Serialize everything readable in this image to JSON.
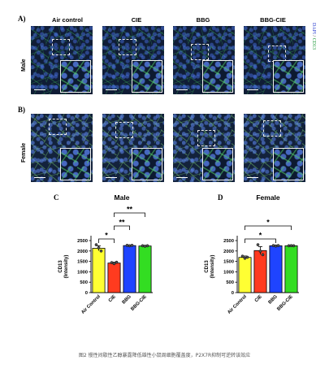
{
  "figure": {
    "panel_letters": [
      "A)",
      "B)",
      "C",
      "D"
    ],
    "column_headers": [
      "Air control",
      "CIE",
      "BBG",
      "BBG-CIE"
    ],
    "row_labels": [
      "Male",
      "Female"
    ],
    "stain_label": {
      "part1": "DAPI",
      "sep": " / ",
      "part2": "CD13"
    },
    "colors": {
      "dapi": "#2b3ecf",
      "cd13": "#1f9a3a"
    }
  },
  "chart_data": [
    {
      "type": "bar",
      "title": "Male",
      "ylabel": "CD13\n(Intensity)",
      "ylim": [
        0,
        2500
      ],
      "yticks": [
        0,
        500,
        1000,
        1500,
        2000,
        2500
      ],
      "categories": [
        "Air Control",
        "CIE",
        "BBG",
        "BBG-CIE"
      ],
      "values": [
        2130,
        1420,
        2260,
        2240
      ],
      "errors": [
        120,
        40,
        30,
        25
      ],
      "colors": [
        "#ffff33",
        "#ff3b1f",
        "#1f44ff",
        "#33dd22"
      ],
      "points": [
        [
          2300,
          2150,
          2000
        ],
        [
          1440,
          1390,
          1460
        ],
        [
          2270,
          2250,
          2270
        ],
        [
          2250,
          2230,
          2250
        ]
      ],
      "significance": [
        {
          "from": 0,
          "to": 1,
          "label": "*",
          "level": 1
        },
        {
          "from": 1,
          "to": 2,
          "label": "**",
          "level": 2
        },
        {
          "from": 1,
          "to": 3,
          "label": "**",
          "level": 3
        }
      ]
    },
    {
      "type": "bar",
      "title": "Female",
      "ylabel": "CD13\n(Intensity)",
      "ylim": [
        0,
        2500
      ],
      "yticks": [
        0,
        500,
        1000,
        1500,
        2000,
        2500
      ],
      "categories": [
        "Air Control",
        "CIE",
        "BBG",
        "BBG-CIE"
      ],
      "values": [
        1690,
        2020,
        2250,
        2250
      ],
      "errors": [
        70,
        190,
        30,
        15
      ],
      "colors": [
        "#ffff33",
        "#ff3b1f",
        "#1f44ff",
        "#33dd22"
      ],
      "points": [
        [
          1750,
          1650,
          1700
        ],
        [
          2300,
          1990,
          1820
        ],
        [
          2260,
          2240,
          2260
        ],
        [
          2250,
          2255,
          2250
        ]
      ],
      "significance": [
        {
          "from": 0,
          "to": 2,
          "label": "*",
          "level": 1
        },
        {
          "from": 0,
          "to": 3,
          "label": "*",
          "level": 2
        }
      ]
    }
  ],
  "caption": "图2 慢性间歇性乙醇暴露降低雄性小鼠周细胞覆盖度，P2X7R抑制可逆转该效应"
}
